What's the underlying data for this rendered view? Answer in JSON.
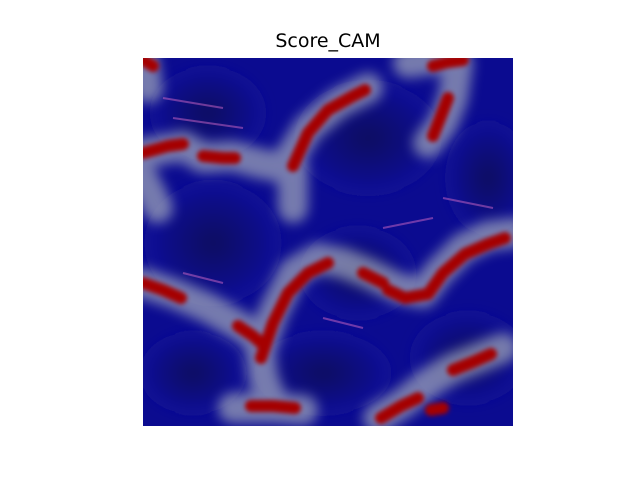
{
  "figure": {
    "title": "Score_CAM",
    "colors": {
      "low": "#0a0a8c",
      "mid": "#9a9a9a",
      "high": "#a80000"
    }
  }
}
